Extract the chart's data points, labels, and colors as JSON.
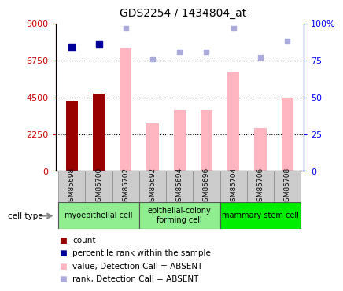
{
  "title": "GDS2254 / 1434804_at",
  "samples": [
    "GSM85698",
    "GSM85700",
    "GSM85702",
    "GSM85692",
    "GSM85694",
    "GSM85696",
    "GSM85704",
    "GSM85706",
    "GSM85708"
  ],
  "count_values": [
    4300,
    4700,
    null,
    null,
    null,
    null,
    null,
    null,
    null
  ],
  "percentile_values": [
    84,
    86,
    null,
    null,
    null,
    null,
    null,
    null,
    null
  ],
  "value_absent": [
    null,
    null,
    7500,
    2900,
    3700,
    3700,
    6000,
    2600,
    4500
  ],
  "rank_absent": [
    null,
    null,
    97,
    76,
    81,
    81,
    97,
    77,
    88
  ],
  "group_labels": [
    "myoepithelial cell",
    "epithelial-colony\nforming cell",
    "mammary stem cell"
  ],
  "group_ranges": [
    [
      0,
      3
    ],
    [
      3,
      6
    ],
    [
      6,
      9
    ]
  ],
  "group_colors": [
    "#90EE90",
    "#90EE90",
    "#00EE00"
  ],
  "ylim_left": [
    0,
    9000
  ],
  "ylim_right": [
    0,
    100
  ],
  "yticks_left": [
    0,
    2250,
    4500,
    6750,
    9000
  ],
  "ytick_labels_left": [
    "0",
    "2250",
    "4500",
    "6750",
    "9000"
  ],
  "yticks_right": [
    0,
    25,
    50,
    75,
    100
  ],
  "ytick_labels_right": [
    "0",
    "25",
    "50",
    "75",
    "100%"
  ],
  "bar_width": 0.45,
  "color_count": "#990000",
  "color_percentile": "#000099",
  "color_value_absent": "#FFB6C1",
  "color_rank_absent": "#AAAADD",
  "legend_items": [
    {
      "label": "count",
      "color": "#990000"
    },
    {
      "label": "percentile rank within the sample",
      "color": "#000099"
    },
    {
      "label": "value, Detection Call = ABSENT",
      "color": "#FFB6C1"
    },
    {
      "label": "rank, Detection Call = ABSENT",
      "color": "#AAAADD"
    }
  ]
}
